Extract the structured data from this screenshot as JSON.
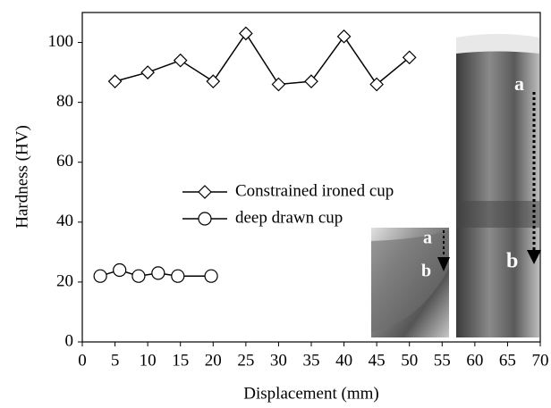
{
  "chart_data": {
    "type": "line",
    "xlabel": "Displacement (mm)",
    "ylabel": "Hardness (HV)",
    "xlim": [
      0,
      70
    ],
    "ylim": [
      0,
      110
    ],
    "xticks": [
      0,
      5,
      10,
      15,
      20,
      25,
      30,
      35,
      40,
      45,
      50,
      55,
      60,
      65,
      70
    ],
    "yticks": [
      0,
      20,
      40,
      60,
      80,
      100
    ],
    "series": [
      {
        "name": "Constrained ironed cup",
        "color": "#000000",
        "marker": "diamond",
        "x": [
          5,
          10,
          15,
          20,
          25,
          30,
          35,
          40,
          45,
          50
        ],
        "values": [
          87,
          90,
          94,
          87,
          103,
          86,
          87,
          102,
          86,
          95
        ]
      },
      {
        "name": "deep drawn cup",
        "color": "#000000",
        "marker": "circle",
        "x": [
          2.75,
          5.7,
          8.6,
          11.6,
          14.6,
          19.7
        ],
        "values": [
          22,
          24,
          22,
          23,
          22,
          22
        ]
      }
    ],
    "annotations": {
      "small_photo": [
        "a",
        "b"
      ],
      "large_photo": [
        "a",
        "b"
      ]
    }
  }
}
